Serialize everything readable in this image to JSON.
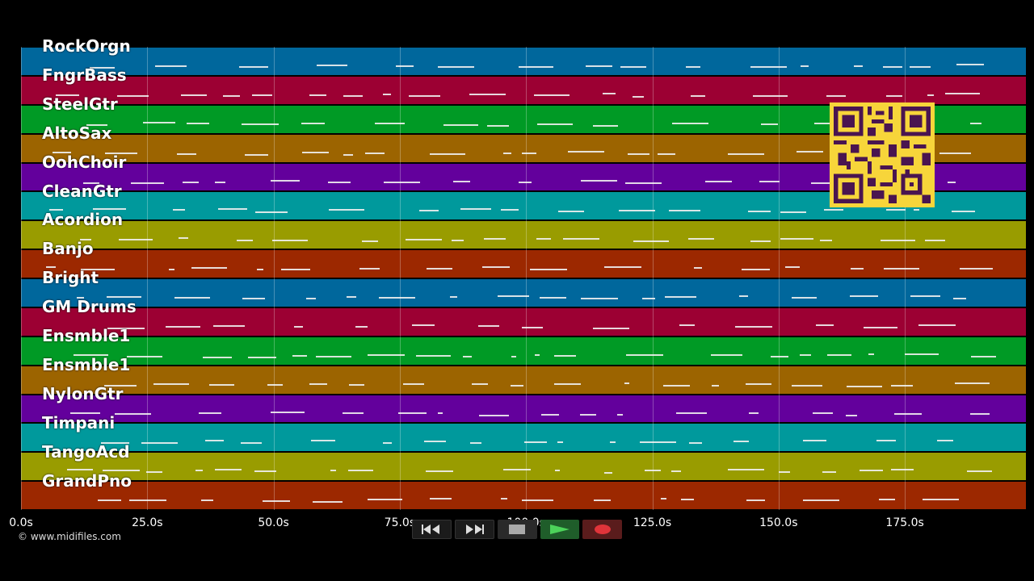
{
  "tracks": [
    {
      "name": "RockOrgn",
      "color": "#00679c"
    },
    {
      "name": "FngrBass",
      "color": "#9c0033"
    },
    {
      "name": "SteelGtr",
      "color": "#009a25"
    },
    {
      "name": "AltoSax",
      "color": "#9c6400"
    },
    {
      "name": "OohChoir",
      "color": "#63009c"
    },
    {
      "name": "CleanGtr",
      "color": "#00999c"
    },
    {
      "name": "Acordion",
      "color": "#999c00"
    },
    {
      "name": "Banjo",
      "color": "#9c2800"
    },
    {
      "name": "Bright",
      "color": "#00679c"
    },
    {
      "name": "GM Drums",
      "color": "#9c0033"
    },
    {
      "name": "Ensmble1",
      "color": "#009a25"
    },
    {
      "name": "Ensmble1",
      "color": "#9c6400"
    },
    {
      "name": "NylonGtr",
      "color": "#63009c"
    },
    {
      "name": "Timpani",
      "color": "#00999c"
    },
    {
      "name": "TangoAcd",
      "color": "#999c00"
    },
    {
      "name": "GrandPno",
      "color": "#9c2800"
    }
  ],
  "timeline": {
    "ticks": [
      "0.0s",
      "25.0s",
      "50.0s",
      "75.0s",
      "100.0s",
      "125.0s",
      "150.0s",
      "175.0s"
    ]
  },
  "copyright": "© www.midifiles.com",
  "controls": {
    "rewind_icon": "rewind-icon",
    "forward_icon": "fast-forward-icon",
    "stop_icon": "stop-icon",
    "play_icon": "play-icon",
    "record_icon": "record-icon"
  }
}
